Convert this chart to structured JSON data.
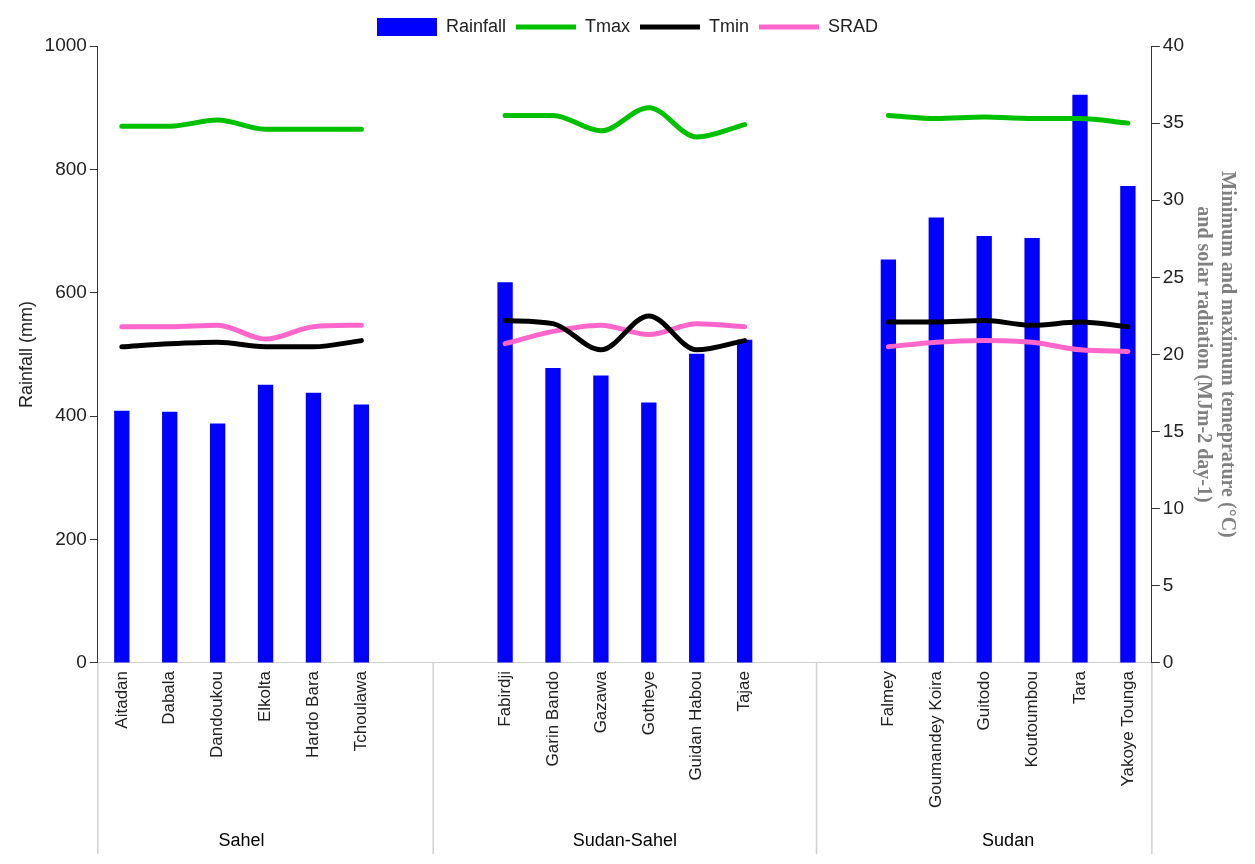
{
  "chart_data": {
    "type": "bar",
    "categories": [
      "Aitadan",
      "Dabala",
      "Dandoukou",
      "Elkolta",
      "Hardo Bara",
      "Tchoulawa",
      null,
      null,
      "Fabirdji",
      "Garin Bando",
      "Gazawa",
      "Gotheye",
      "Guidan Habou",
      "Tajae",
      null,
      null,
      "Falmey",
      "Goumandey Koira",
      "Guitodo",
      "Koutoumbou",
      "Tara",
      "Yakoye Tounga"
    ],
    "series": [
      {
        "name": "Rainfall",
        "color": "#0000ff",
        "values": [
          409,
          407,
          388,
          451,
          438,
          419,
          null,
          null,
          617,
          478,
          466,
          422,
          501,
          524,
          null,
          null,
          654,
          722,
          692,
          689,
          921,
          773
        ]
      },
      {
        "name": "Tmax",
        "type": "line",
        "axis": "y2",
        "color": "#00c000",
        "values": [
          34.8,
          34.8,
          35.2,
          34.6,
          34.6,
          34.6,
          null,
          null,
          35.5,
          35.5,
          34.5,
          36.0,
          34.1,
          34.9,
          null,
          null,
          35.5,
          35.3,
          35.4,
          35.3,
          35.3,
          35.0
        ]
      },
      {
        "name": "Tmin",
        "type": "line",
        "axis": "y2",
        "color": "#000000",
        "values": [
          20.5,
          20.7,
          20.8,
          20.5,
          20.5,
          20.9,
          null,
          null,
          22.2,
          22.0,
          20.3,
          22.5,
          20.3,
          20.9,
          null,
          null,
          22.1,
          22.1,
          22.2,
          21.9,
          22.1,
          21.8
        ]
      },
      {
        "name": "SRAD",
        "type": "line",
        "axis": "y2",
        "color": "#ff66cc",
        "values": [
          21.8,
          21.8,
          21.9,
          21.0,
          21.8,
          21.9,
          null,
          null,
          20.7,
          21.5,
          21.9,
          21.3,
          22.0,
          21.8,
          null,
          null,
          20.5,
          20.8,
          20.9,
          20.8,
          20.3,
          20.2
        ]
      }
    ],
    "ylabel": "Rainfall (mm)",
    "y2label": "Minimum and maximum temeprature (°C) and solar radiation (MJm-2 day-1)",
    "ylim": [
      0,
      1000
    ],
    "yticks": [
      0,
      200,
      400,
      600,
      800,
      1000
    ],
    "y2lim": [
      0,
      40
    ],
    "y2ticks": [
      0,
      5,
      10,
      15,
      20,
      25,
      30,
      35,
      40
    ],
    "annotations": [
      "Sahel",
      "Sudan-Sahel",
      "Sudan"
    ],
    "legend": "top",
    "grid": false
  }
}
